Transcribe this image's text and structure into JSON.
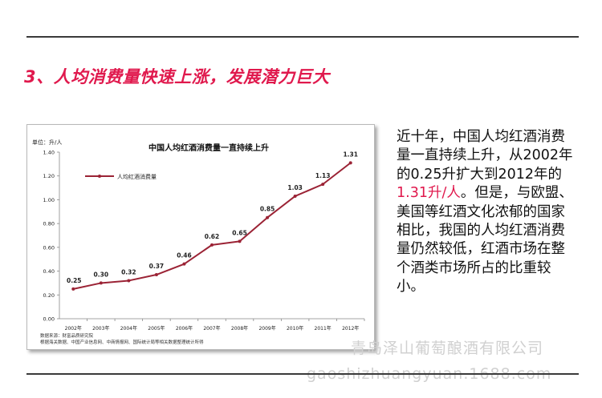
{
  "heading": "3、人均消费量快速上涨，发展潜力巨大",
  "description": {
    "before": "近十年，中国人均红酒消费量一直持续上升，从2002年的0.25升扩大到2012年的",
    "highlight": "1.31升/人",
    "after": "。但是，与欧盟、美国等红酒文化浓郁的国家相比，我国的人均红酒消费量仍然较低，红酒市场在整个酒类市场所占的比重较小。"
  },
  "watermark": {
    "company": "青岛泽山葡萄酿酒有限公司",
    "url": "gaoshizhuangyuan.1688.com"
  },
  "colors": {
    "heading": "#e0194d",
    "series": "#9b2335",
    "highlight": "#e0194d"
  },
  "chart_data": {
    "type": "line",
    "title": "中国人均红酒消费量一直持续上升",
    "unit_label": "单位：升/人",
    "categories": [
      "2002年",
      "2003年",
      "2004年",
      "2005年",
      "2006年",
      "2007年",
      "2008年",
      "2009年",
      "2010年",
      "2011年",
      "2012年"
    ],
    "series": [
      {
        "name": "人均红酒消费量",
        "values": [
          0.25,
          0.3,
          0.32,
          0.37,
          0.46,
          0.62,
          0.65,
          0.85,
          1.03,
          1.13,
          1.31
        ]
      }
    ],
    "data_labels": [
      "0.25",
      "0.30",
      "0.32",
      "0.37",
      "0.46",
      "0.62",
      "0.65",
      "0.85",
      "1.03",
      "1.13",
      "1.31"
    ],
    "ylim": [
      0,
      1.4
    ],
    "yticks": [
      "0.00",
      "0.20",
      "0.40",
      "0.60",
      "0.80",
      "1.00",
      "1.20",
      "1.40"
    ],
    "legend_position": "top-left",
    "grid": false,
    "source_lines": [
      "数据来源：财富品质研究院",
      "根据海关数据、中国产业信息网、中商情报网、国际统计局等相关数据整理统计所得"
    ]
  }
}
